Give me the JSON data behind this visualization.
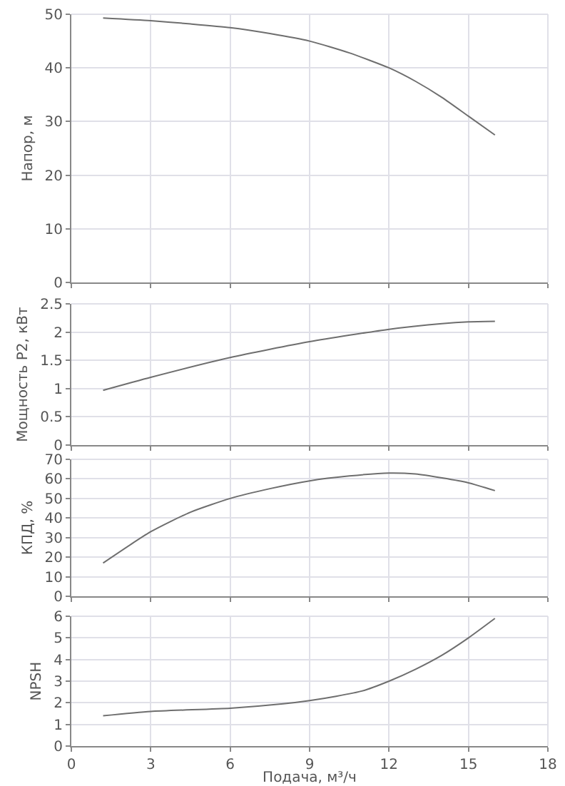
{
  "chart_data": [
    {
      "type": "line",
      "ylabel": "Напор, м",
      "series": [
        {
          "color": "#6e6e6e",
          "x": [
            1.2,
            3,
            4.5,
            6,
            7.5,
            9,
            10.5,
            12,
            13,
            14,
            15,
            16
          ],
          "values": [
            49.3,
            48.8,
            48.2,
            47.5,
            46.4,
            45,
            42.8,
            40,
            37.5,
            34.5,
            31,
            27.5
          ]
        }
      ],
      "xlim": [
        0,
        18
      ],
      "xticks": [
        0,
        3,
        6,
        9,
        12,
        15,
        18
      ],
      "ylim": [
        0,
        50
      ],
      "yticks": [
        0,
        10,
        20,
        30,
        40,
        50
      ],
      "grid": true,
      "tick_labels": "y",
      "marker": "none",
      "line_style": "solid"
    },
    {
      "type": "line",
      "ylabel": "Мощность P2, кВт",
      "series": [
        {
          "color": "#6e6e6e",
          "x": [
            1.2,
            3,
            6,
            9,
            12,
            14,
            15,
            16
          ],
          "values": [
            0.97,
            1.2,
            1.55,
            1.83,
            2.05,
            2.15,
            2.18,
            2.19
          ]
        }
      ],
      "xlim": [
        0,
        18
      ],
      "xticks": [
        0,
        3,
        6,
        9,
        12,
        15,
        18
      ],
      "ylim": [
        0,
        2.5
      ],
      "yticks": [
        0,
        0.5,
        1,
        1.5,
        2,
        2.5
      ],
      "grid": true,
      "tick_labels": "y",
      "marker": "none",
      "line_style": "solid"
    },
    {
      "type": "line",
      "ylabel": "КПД, %",
      "series": [
        {
          "color": "#6e6e6e",
          "x": [
            1.2,
            3,
            4.5,
            6,
            7.5,
            9,
            10.5,
            12,
            13,
            14,
            15,
            16
          ],
          "values": [
            17,
            33,
            43,
            50,
            55,
            59,
            61.5,
            63,
            62.5,
            60.5,
            58,
            54
          ]
        }
      ],
      "xlim": [
        0,
        18
      ],
      "xticks": [
        0,
        3,
        6,
        9,
        12,
        15,
        18
      ],
      "ylim": [
        0,
        70
      ],
      "yticks": [
        0,
        10,
        20,
        30,
        40,
        50,
        60,
        70
      ],
      "grid": true,
      "tick_labels": "y",
      "marker": "none",
      "line_style": "solid"
    },
    {
      "type": "line",
      "xlabel": "Подача, м³/ч",
      "ylabel": "NPSH",
      "series": [
        {
          "color": "#6e6e6e",
          "x": [
            1.2,
            3,
            6,
            8,
            9,
            10,
            11,
            12,
            13,
            14,
            15,
            16
          ],
          "values": [
            1.4,
            1.6,
            1.75,
            1.95,
            2.1,
            2.3,
            2.55,
            3.0,
            3.55,
            4.2,
            5.0,
            5.9
          ]
        }
      ],
      "xlim": [
        0,
        18
      ],
      "xticks": [
        0,
        3,
        6,
        9,
        12,
        15,
        18
      ],
      "ylim": [
        0,
        6
      ],
      "yticks": [
        0,
        1,
        2,
        3,
        4,
        5,
        6
      ],
      "grid": true,
      "marker": "none",
      "line_style": "solid"
    }
  ]
}
